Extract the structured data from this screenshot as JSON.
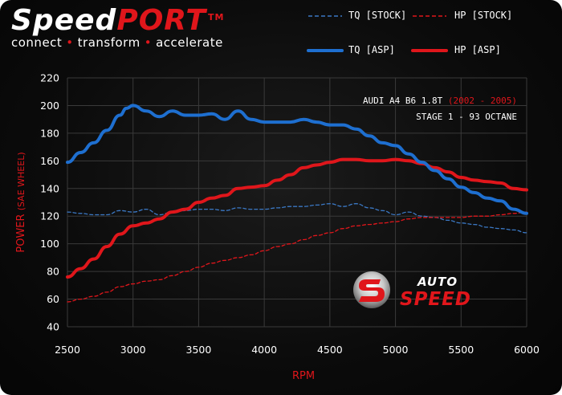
{
  "brand": {
    "name_part1": "Speed",
    "name_part2": "PORT",
    "trademark": "TM",
    "tagline_words": [
      "connect",
      "transform",
      "accelerate"
    ],
    "separator": "•"
  },
  "legend": [
    {
      "label": "TQ [STOCK]",
      "color": "#3b78c4",
      "style": "dashed"
    },
    {
      "label": "HP [STOCK]",
      "color": "#e0161b",
      "style": "dashed"
    },
    {
      "label": "TQ [ASP]",
      "color": "#1e6fd0",
      "style": "solid"
    },
    {
      "label": "HP [ASP]",
      "color": "#e0161b",
      "style": "solid"
    }
  ],
  "annotation": {
    "line1_main": "AUDI A4 B6 1.8T",
    "line1_years": "(2002 - 2005)",
    "line2": "STAGE 1 - 93 OCTANE"
  },
  "logo": {
    "text_top": "AUTO",
    "text_bottom": "SPEED"
  },
  "colors": {
    "red": "#e0161b",
    "blue": "#1e6fd0",
    "grid": "#3a3a3a",
    "background": "#0b0b0b"
  },
  "chart_data": {
    "type": "line",
    "title": "",
    "xlabel": "RPM",
    "ylabel_main": "POWER",
    "ylabel_unit": "(SAE WHEEL)",
    "xlim": [
      2500,
      6000
    ],
    "ylim": [
      40,
      220
    ],
    "xticks": [
      2500,
      3000,
      3500,
      4000,
      4500,
      5000,
      5500,
      6000
    ],
    "yticks": [
      40,
      60,
      80,
      100,
      120,
      140,
      160,
      180,
      200,
      220
    ],
    "grid": true,
    "legend_position": "top-right",
    "series": [
      {
        "name": "TQ [STOCK]",
        "color": "#3b78c4",
        "style": "dashed",
        "x": [
          2500,
          2600,
          2700,
          2800,
          2900,
          3000,
          3100,
          3200,
          3300,
          3400,
          3500,
          3600,
          3700,
          3800,
          3900,
          4000,
          4100,
          4200,
          4300,
          4400,
          4500,
          4600,
          4700,
          4800,
          4900,
          5000,
          5100,
          5200,
          5300,
          5400,
          5500,
          5600,
          5700,
          5800,
          5900,
          6000
        ],
        "y": [
          123,
          122,
          121,
          121,
          124,
          123,
          125,
          121,
          123,
          124,
          125,
          125,
          124,
          126,
          125,
          125,
          126,
          127,
          127,
          128,
          129,
          127,
          129,
          126,
          124,
          121,
          123,
          120,
          119,
          117,
          115,
          114,
          112,
          111,
          110,
          108
        ]
      },
      {
        "name": "HP [STOCK]",
        "color": "#e0161b",
        "style": "dashed",
        "x": [
          2500,
          2600,
          2700,
          2800,
          2900,
          3000,
          3100,
          3200,
          3300,
          3400,
          3500,
          3600,
          3700,
          3800,
          3900,
          4000,
          4100,
          4200,
          4300,
          4400,
          4500,
          4600,
          4700,
          4800,
          4900,
          5000,
          5100,
          5200,
          5300,
          5400,
          5500,
          5600,
          5700,
          5800,
          5900,
          6000
        ],
        "y": [
          58,
          60,
          62,
          65,
          69,
          71,
          73,
          74,
          77,
          80,
          83,
          86,
          88,
          90,
          92,
          95,
          98,
          100,
          103,
          106,
          108,
          111,
          113,
          114,
          115,
          116,
          118,
          119,
          119,
          119,
          119,
          120,
          120,
          121,
          122,
          123
        ]
      },
      {
        "name": "TQ [ASP]",
        "color": "#1e6fd0",
        "style": "solid",
        "x": [
          2500,
          2600,
          2700,
          2800,
          2900,
          2950,
          3000,
          3100,
          3200,
          3300,
          3400,
          3500,
          3600,
          3700,
          3800,
          3900,
          4000,
          4100,
          4200,
          4300,
          4400,
          4500,
          4600,
          4700,
          4800,
          4900,
          5000,
          5100,
          5200,
          5300,
          5400,
          5500,
          5600,
          5700,
          5800,
          5900,
          6000
        ],
        "y": [
          159,
          166,
          173,
          182,
          193,
          198,
          200,
          196,
          192,
          196,
          193,
          193,
          194,
          190,
          196,
          190,
          188,
          188,
          188,
          190,
          188,
          186,
          186,
          183,
          178,
          173,
          171,
          165,
          159,
          153,
          147,
          141,
          137,
          133,
          131,
          125,
          122
        ]
      },
      {
        "name": "HP [ASP]",
        "color": "#e0161b",
        "style": "solid",
        "x": [
          2500,
          2600,
          2700,
          2800,
          2900,
          3000,
          3100,
          3200,
          3300,
          3400,
          3500,
          3600,
          3700,
          3800,
          3900,
          4000,
          4100,
          4200,
          4300,
          4400,
          4500,
          4600,
          4700,
          4800,
          4900,
          5000,
          5100,
          5200,
          5300,
          5400,
          5500,
          5600,
          5700,
          5800,
          5900,
          6000
        ],
        "y": [
          76,
          82,
          89,
          98,
          107,
          113,
          115,
          118,
          123,
          125,
          130,
          133,
          135,
          140,
          141,
          142,
          146,
          150,
          155,
          157,
          159,
          161,
          161,
          160,
          160,
          161,
          160,
          158,
          155,
          152,
          148,
          146,
          145,
          144,
          140,
          139
        ]
      }
    ]
  }
}
